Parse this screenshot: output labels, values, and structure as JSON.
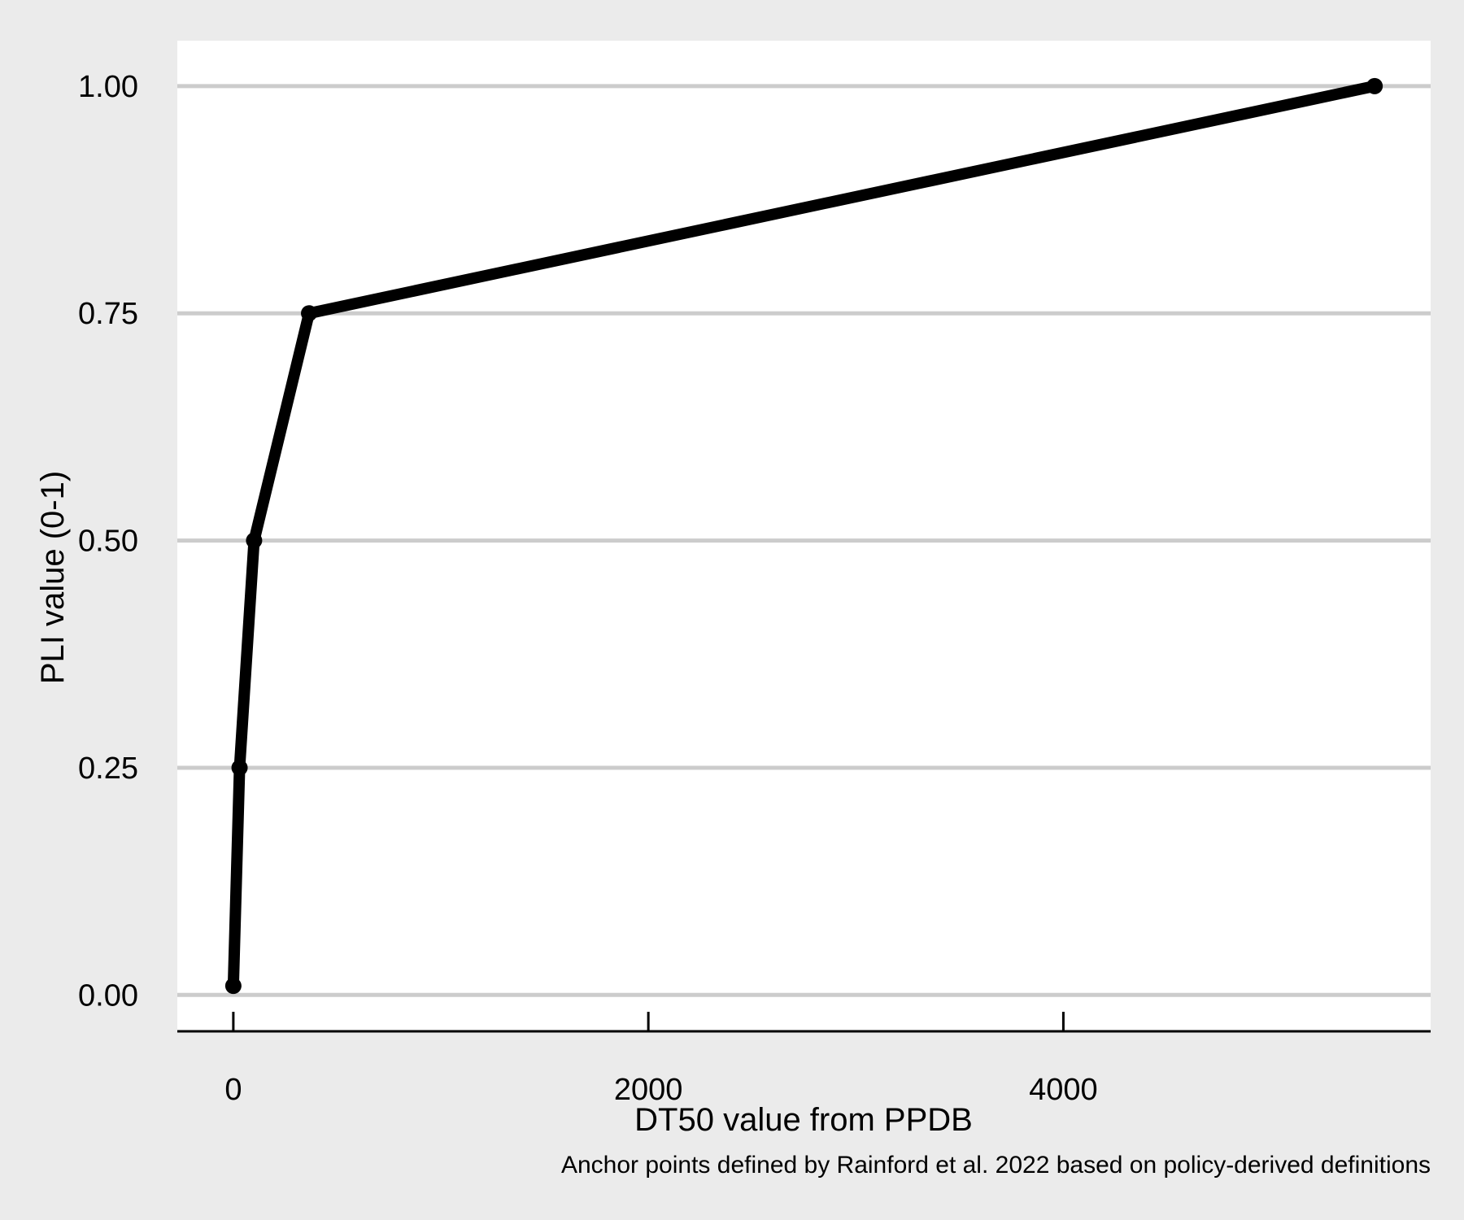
{
  "chart_data": {
    "type": "line",
    "title": "",
    "xlabel": "DT50 value from PPDB",
    "ylabel": "PLI value (0-1)",
    "caption": "Anchor points defined by Rainford et al. 2022 based on policy-derived definitions",
    "xlim": [
      -270,
      5770
    ],
    "ylim": [
      -0.04,
      1.05
    ],
    "x_ticks": [
      0,
      2000,
      4000
    ],
    "x_tick_labels": [
      "0",
      "2000",
      "4000"
    ],
    "y_ticks": [
      0,
      0.25,
      0.5,
      0.75,
      1.0
    ],
    "y_tick_labels": [
      "0.00",
      "0.25",
      "0.50",
      "0.75",
      "1.00"
    ],
    "grid": {
      "horizontal": true,
      "vertical": false
    },
    "legend": "none",
    "series": [
      {
        "x": [
          0,
          30,
          100,
          365,
          5500
        ],
        "y": [
          0.01,
          0.25,
          0.5,
          0.75,
          1.0
        ]
      }
    ],
    "colors": {
      "background": "#ebebeb",
      "panel": "#ffffff",
      "grid": "#cccccc",
      "line": "#000000"
    }
  }
}
